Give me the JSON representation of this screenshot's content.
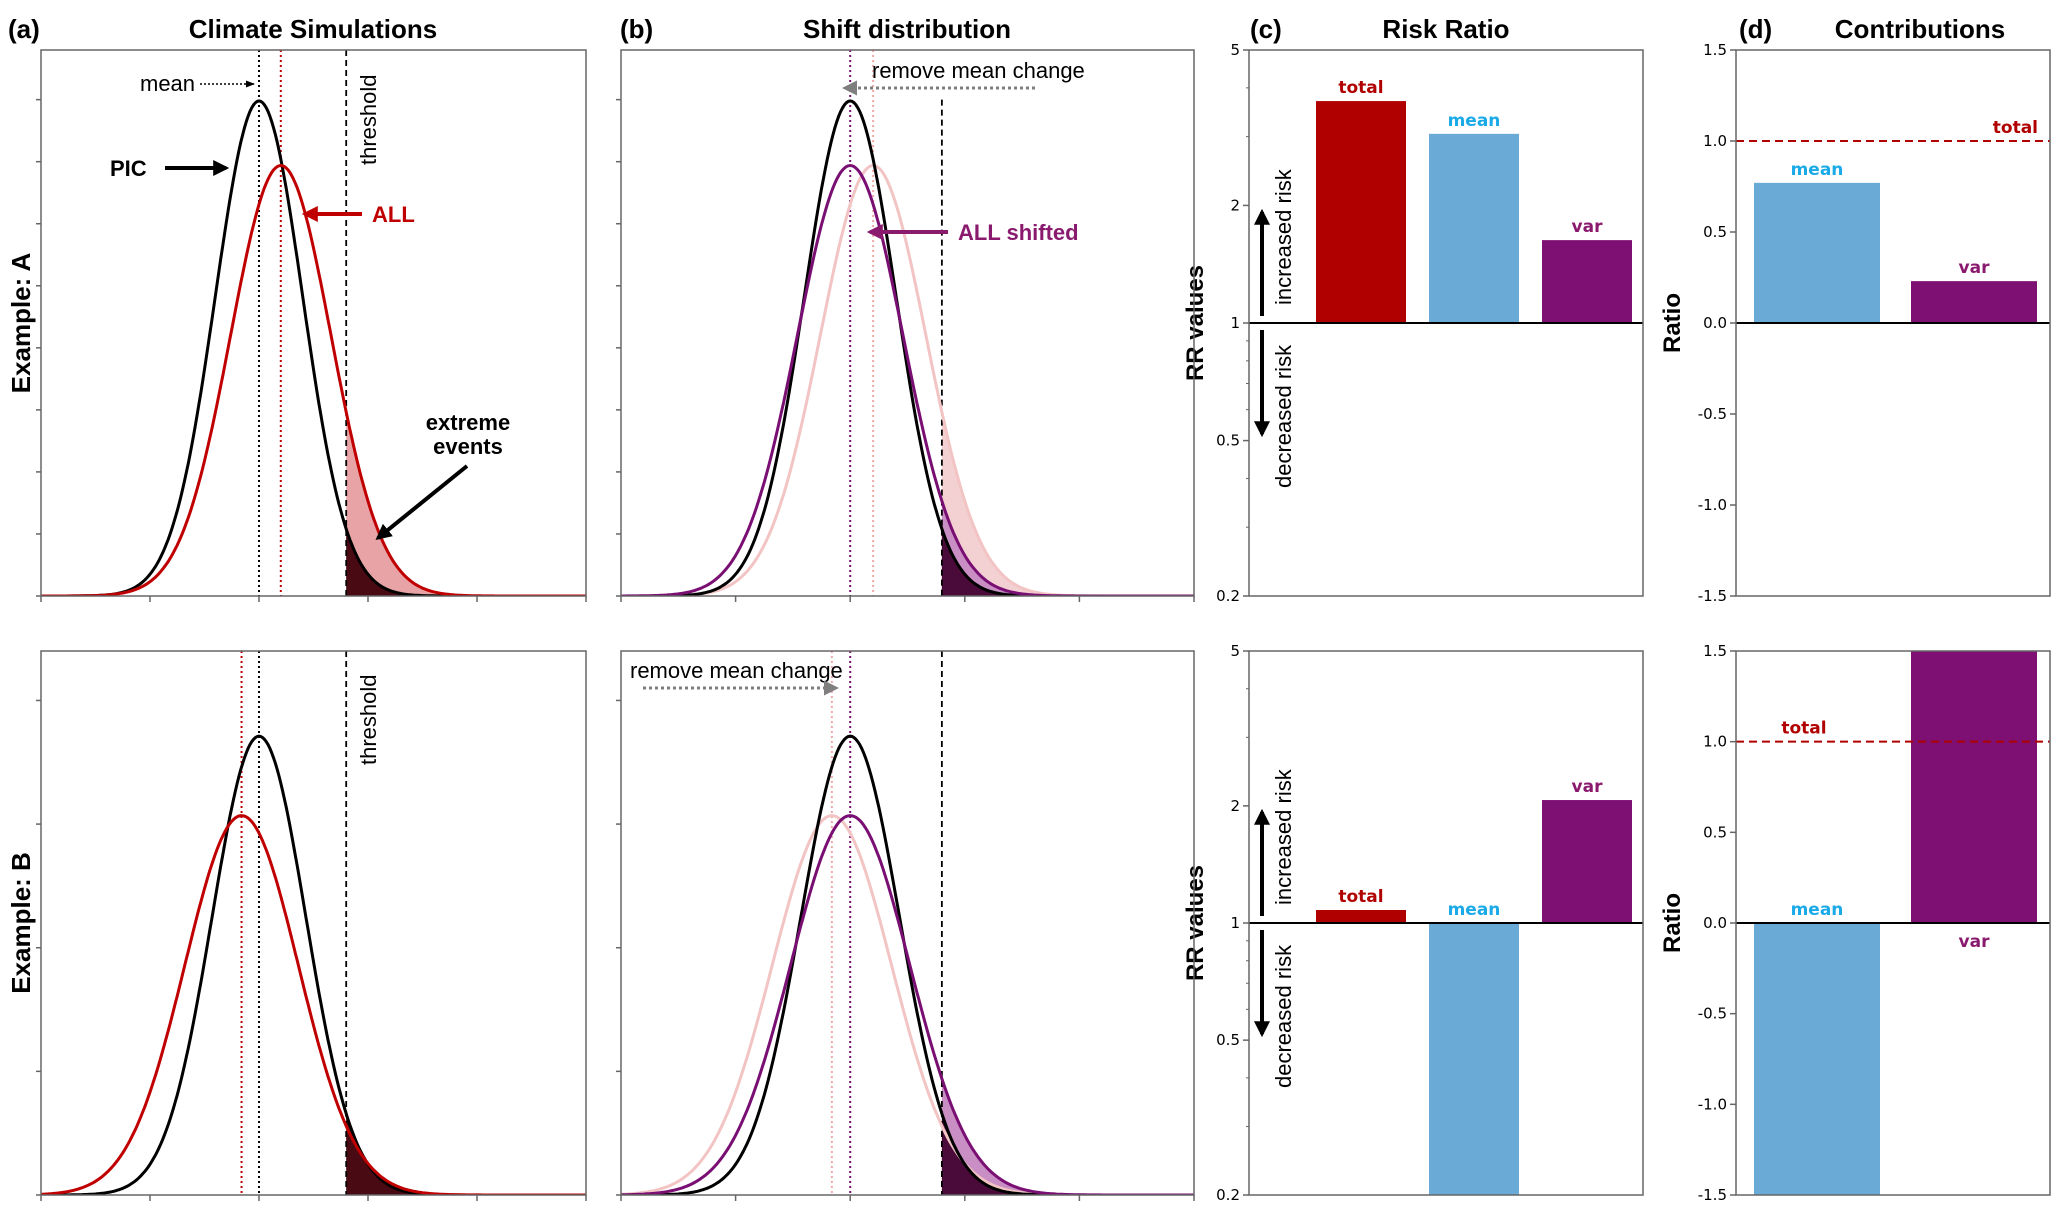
{
  "figure": {
    "row_labels": [
      "Example: A",
      "Example: B"
    ],
    "colors": {
      "pic": "#000000",
      "all": "#c00000",
      "all_faded": "#f2c4c4",
      "all_fill": "#e8a3a6",
      "shifted": "#7a0f73",
      "shifted_fill": "#c98fc4",
      "tail_dark": "#4a0a14",
      "tail_dark_purple": "#4a0a3a",
      "bar_total": "#b00000",
      "bar_mean": "#6aaad6",
      "bar_var": "#7e1073",
      "label_mean": "#1aaae8",
      "label_var": "#8a1a6e",
      "shift_arrow": "#7f7f7f"
    }
  },
  "chart_data": [
    {
      "id": "a-top",
      "panel_label": "(a)",
      "title": "Climate Simulations",
      "type": "line",
      "row": "Example: A",
      "xlim": [
        0,
        5
      ],
      "ylim": [
        0,
        1.1
      ],
      "xticks": [
        0,
        1,
        2,
        3,
        4,
        5
      ],
      "yticks": [
        0,
        0.125,
        0.25,
        0.375,
        0.5,
        0.625,
        0.75,
        0.875,
        1.0
      ],
      "threshold": 2.8,
      "series": [
        {
          "name": "PIC",
          "kind": "gaussian",
          "mean": 2.0,
          "sd": 0.4,
          "color_key": "pic"
        },
        {
          "name": "ALL",
          "kind": "gaussian",
          "mean": 2.2,
          "sd": 0.46,
          "color_key": "all"
        }
      ],
      "annotations": {
        "mean": "mean",
        "pic": "PIC",
        "all": "ALL",
        "threshold": "threshold",
        "extreme": [
          "extreme",
          "events"
        ]
      }
    },
    {
      "id": "b-top",
      "panel_label": "(b)",
      "title": "Shift distribution",
      "type": "line",
      "row": "Example: A",
      "xlim": [
        0,
        5
      ],
      "ylim": [
        0,
        1.1
      ],
      "xticks": [
        0,
        1,
        2,
        3,
        4,
        5
      ],
      "yticks": [
        0,
        0.125,
        0.25,
        0.375,
        0.5,
        0.625,
        0.75,
        0.875,
        1.0
      ],
      "threshold": 2.8,
      "series": [
        {
          "name": "ALL (original)",
          "kind": "gaussian",
          "mean": 2.2,
          "sd": 0.46,
          "color_key": "all_faded"
        },
        {
          "name": "PIC",
          "kind": "gaussian",
          "mean": 2.0,
          "sd": 0.4,
          "color_key": "pic"
        },
        {
          "name": "ALL shifted",
          "kind": "gaussian",
          "mean": 2.0,
          "sd": 0.46,
          "color_key": "shifted"
        }
      ],
      "annotations": {
        "shift": "remove mean change",
        "shifted": "ALL shifted"
      }
    },
    {
      "id": "c-top",
      "panel_label": "(c)",
      "title": "Risk Ratio",
      "type": "bar",
      "ylabel": "RR values",
      "yscale": "log",
      "ylim": [
        0.2,
        5
      ],
      "yticks": [
        0.2,
        0.5,
        1,
        2,
        5
      ],
      "yticklabels": [
        "0.2",
        "0.5",
        "1",
        "2",
        "5"
      ],
      "baseline": 1,
      "categories": [
        "total",
        "mean",
        "var"
      ],
      "values": [
        3.7,
        3.05,
        1.63
      ],
      "risk_labels": {
        "up": "increased risk",
        "down": "decreased risk"
      }
    },
    {
      "id": "d-top",
      "panel_label": "(d)",
      "title": "Contributions",
      "type": "bar",
      "ylabel": "Ratio",
      "ylim": [
        -1.5,
        1.5
      ],
      "yticks": [
        -1.5,
        -1.0,
        -0.5,
        0.0,
        0.5,
        1.0,
        1.5
      ],
      "yticklabels": [
        "-1.5",
        "-1.0",
        "-0.5",
        "0.0",
        "0.5",
        "1.0",
        "1.5"
      ],
      "baseline": 0,
      "categories": [
        "mean",
        "var"
      ],
      "values": [
        0.77,
        0.23
      ],
      "reference_line": {
        "label": "total",
        "value": 1.0
      }
    },
    {
      "id": "a-bottom",
      "type": "line",
      "row": "Example: B",
      "xlim": [
        0,
        5
      ],
      "ylim": [
        0,
        1.1
      ],
      "xticks": [
        0,
        1,
        2,
        3,
        4,
        5
      ],
      "yticks": [
        0,
        0.25,
        0.5,
        0.75,
        1.0
      ],
      "threshold": 2.8,
      "series": [
        {
          "name": "PIC",
          "kind": "gaussian",
          "mean": 2.0,
          "sd": 0.43,
          "color_key": "pic"
        },
        {
          "name": "ALL",
          "kind": "gaussian",
          "mean": 1.84,
          "sd": 0.52,
          "color_key": "all"
        }
      ],
      "annotations": {
        "threshold": "threshold"
      }
    },
    {
      "id": "b-bottom",
      "type": "line",
      "row": "Example: B",
      "xlim": [
        0,
        5
      ],
      "ylim": [
        0,
        1.1
      ],
      "xticks": [
        0,
        1,
        2,
        3,
        4,
        5
      ],
      "yticks": [
        0,
        0.25,
        0.5,
        0.75,
        1.0
      ],
      "threshold": 2.8,
      "series": [
        {
          "name": "ALL (original)",
          "kind": "gaussian",
          "mean": 1.84,
          "sd": 0.52,
          "color_key": "all_faded"
        },
        {
          "name": "PIC",
          "kind": "gaussian",
          "mean": 2.0,
          "sd": 0.43,
          "color_key": "pic"
        },
        {
          "name": "ALL shifted",
          "kind": "gaussian",
          "mean": 2.0,
          "sd": 0.52,
          "color_key": "shifted"
        }
      ],
      "annotations": {
        "shift": "remove mean change"
      }
    },
    {
      "id": "c-bottom",
      "type": "bar",
      "ylabel": "RR values",
      "yscale": "log",
      "ylim": [
        0.2,
        5
      ],
      "yticks": [
        0.2,
        0.5,
        1,
        2,
        5
      ],
      "yticklabels": [
        "0.2",
        "0.5",
        "1",
        "2",
        "5"
      ],
      "baseline": 1,
      "categories": [
        "total",
        "mean",
        "var"
      ],
      "values": [
        1.08,
        0.2,
        2.07
      ],
      "risk_labels": {
        "up": "increased risk",
        "down": "decreased risk"
      }
    },
    {
      "id": "d-bottom",
      "type": "bar",
      "ylabel": "Ratio",
      "ylim": [
        -1.5,
        1.5
      ],
      "yticks": [
        -1.5,
        -1.0,
        -0.5,
        0.0,
        0.5,
        1.0,
        1.5
      ],
      "yticklabels": [
        "-1.5",
        "-1.0",
        "-0.5",
        "0.0",
        "0.5",
        "1.0",
        "1.5"
      ],
      "baseline": 0,
      "categories": [
        "mean",
        "var"
      ],
      "values": [
        -1.5,
        1.5
      ],
      "reference_line": {
        "label": "total",
        "value": 1.0
      }
    }
  ]
}
